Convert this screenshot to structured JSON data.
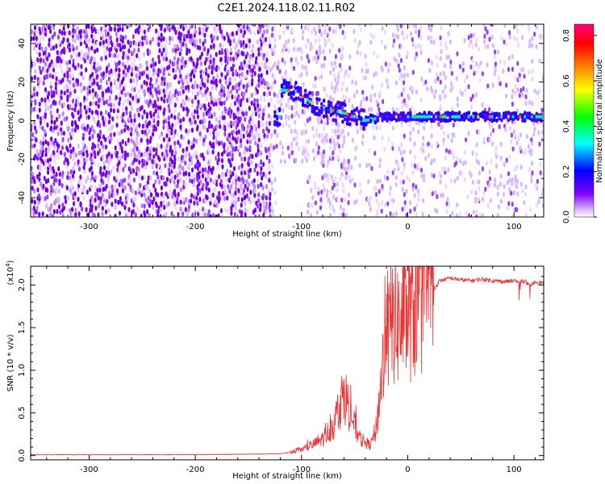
{
  "title": "C2E1.2024.118.02.11.R02",
  "chart_data": [
    {
      "type": "heatmap",
      "xlabel": "Height of straight line (km)",
      "ylabel": "Frequency (Hz)",
      "xlim": [
        -355,
        128
      ],
      "ylim": [
        -50,
        50
      ],
      "xticks": [
        -300,
        -200,
        -100,
        0,
        100
      ],
      "yticks": [
        -40,
        -20,
        0,
        20,
        40
      ],
      "colorbar": {
        "label": "Normalized spectral amplitude",
        "range": [
          0.0,
          0.85
        ],
        "ticks": [
          "0.0",
          "0.2",
          "0.4",
          "0.6",
          "0.8"
        ],
        "colors": [
          "#ffffff",
          "#8000ff",
          "#0000ff",
          "#00ffff",
          "#00ff00",
          "#ffff00",
          "#ff8000",
          "#ff0000",
          "#ff0080"
        ]
      },
      "features": {
        "noise_fill_region_x": [
          -355,
          -130
        ],
        "blank_region": {
          "x": [
            -125,
            -95
          ],
          "y": [
            -50,
            -22
          ]
        },
        "signal_track": [
          {
            "x": -120,
            "f": 16
          },
          {
            "x": -105,
            "f": 15
          },
          {
            "x": -90,
            "f": 9
          },
          {
            "x": -75,
            "f": 6
          },
          {
            "x": -60,
            "f": 4
          },
          {
            "x": -40,
            "f": 0
          },
          {
            "x": -20,
            "f": 2
          },
          {
            "x": 0,
            "f": 2
          },
          {
            "x": 30,
            "f": 2
          },
          {
            "x": 60,
            "f": 2
          },
          {
            "x": 90,
            "f": 2
          },
          {
            "x": 125,
            "f": 2
          }
        ]
      }
    },
    {
      "type": "line",
      "xlabel": "Height of straight line (km)",
      "ylabel": "SNR (10 * v/v)",
      "yscale_label": "(x10",
      "yscale_exp": "4",
      "yscale_close": ")",
      "xlim": [
        -355,
        128
      ],
      "ylim": [
        -0.05,
        2.22
      ],
      "xticks": [
        -300,
        -200,
        -100,
        0,
        100
      ],
      "yticks": [
        "0.0",
        "0.5",
        "1.0",
        "1.5",
        "2.0"
      ],
      "color": "#ee3333",
      "series": [
        {
          "x": [
            -355,
            -300,
            -200,
            -120,
            -110,
            -100,
            -90,
            -80,
            -70,
            -65,
            -60,
            -55,
            -50,
            -45,
            -40,
            -35,
            -30,
            -27,
            -25,
            -22,
            -20,
            -17,
            -15,
            -12,
            -10,
            -5,
            0,
            5,
            10,
            15,
            20,
            25,
            30,
            40,
            50,
            60,
            70,
            80,
            90,
            100,
            105,
            110,
            115,
            120,
            128
          ],
          "y": [
            0.01,
            0.01,
            0.01,
            0.02,
            0.04,
            0.07,
            0.12,
            0.2,
            0.35,
            0.55,
            0.75,
            0.55,
            0.35,
            0.2,
            0.15,
            0.12,
            0.3,
            0.6,
            0.9,
            1.2,
            1.35,
            1.45,
            1.55,
            1.6,
            1.55,
            1.55,
            1.65,
            1.7,
            1.75,
            1.85,
            1.9,
            1.95,
            2.05,
            2.08,
            2.06,
            2.05,
            2.07,
            2.05,
            2.04,
            2.05,
            2.03,
            2.05,
            1.98,
            2.04,
            2.02
          ]
        }
      ]
    }
  ]
}
